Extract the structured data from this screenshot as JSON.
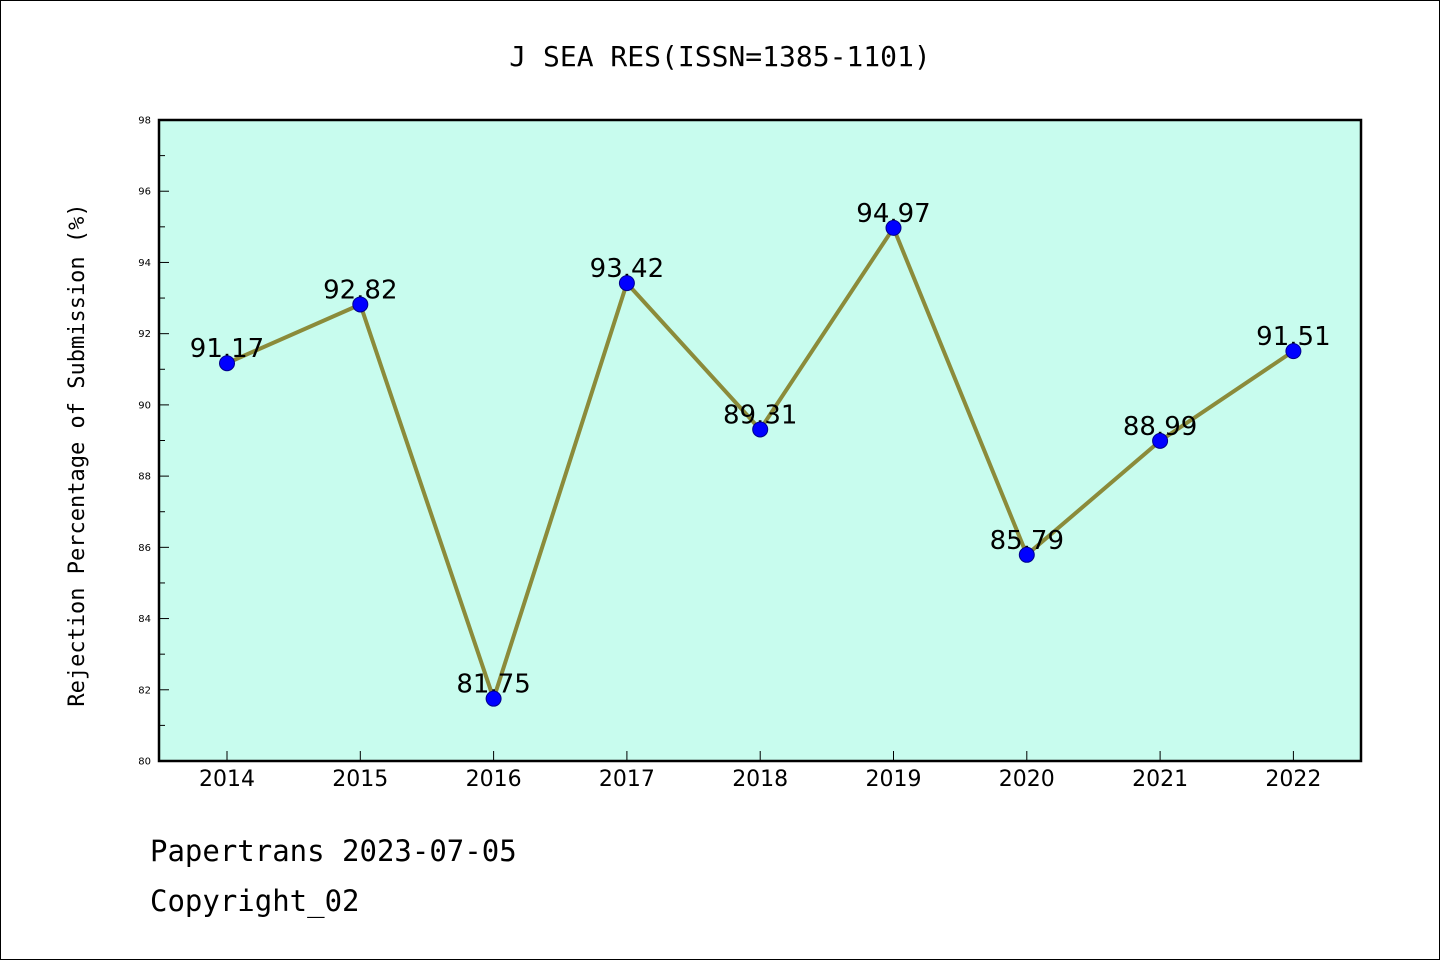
{
  "chart_data": {
    "type": "line",
    "title": "J SEA RES(ISSN=1385-1101)",
    "ylabel": "Rejection Percentage of Submission (%)",
    "xlabel": "",
    "categories": [
      "2014",
      "2015",
      "2016",
      "2017",
      "2018",
      "2019",
      "2020",
      "2021",
      "2022"
    ],
    "values": [
      91.17,
      92.82,
      81.75,
      93.42,
      89.31,
      94.97,
      85.79,
      88.99,
      91.51
    ],
    "data_labels": [
      "91.17",
      "92.82",
      "81.75",
      "93.42",
      "89.31",
      "94.97",
      "85.79",
      "88.99",
      "91.51"
    ],
    "ylim": [
      80,
      98
    ],
    "yticks": [
      "80",
      "82",
      "84",
      "86",
      "88",
      "90",
      "92",
      "94",
      "96",
      "98"
    ],
    "grid": false,
    "legend": "none",
    "colors": {
      "plot_background": "#c8fcee",
      "line": "#8b8b3a",
      "marker": "#0000ff",
      "marker_edge": "#00008b"
    }
  },
  "footer": {
    "line1": "Papertrans 2023-07-05",
    "line2": "Copyright_02"
  }
}
